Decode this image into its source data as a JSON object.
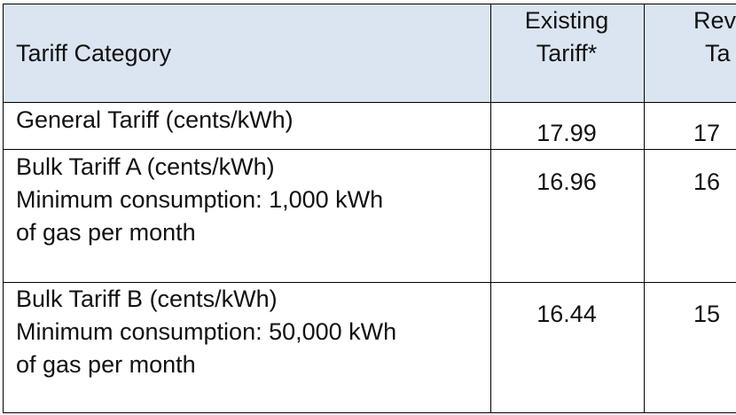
{
  "table": {
    "header": {
      "category": "Tariff Category",
      "existing": [
        "Existing",
        "Tariff*"
      ],
      "revised": [
        "Rev",
        "Ta"
      ]
    },
    "rows": [
      {
        "category": [
          "General Tariff (cents/kWh)"
        ],
        "existing": "17.99",
        "revised": "17"
      },
      {
        "category": [
          "Bulk Tariff A (cents/kWh)",
          "Minimum consumption: 1,000 kWh",
          "of gas per month"
        ],
        "existing": "16.96",
        "revised": "16"
      },
      {
        "category": [
          "Bulk Tariff B (cents/kWh)",
          "Minimum consumption: 50,000 kWh",
          "of gas per month"
        ],
        "existing": "16.44",
        "revised": "15"
      }
    ]
  }
}
